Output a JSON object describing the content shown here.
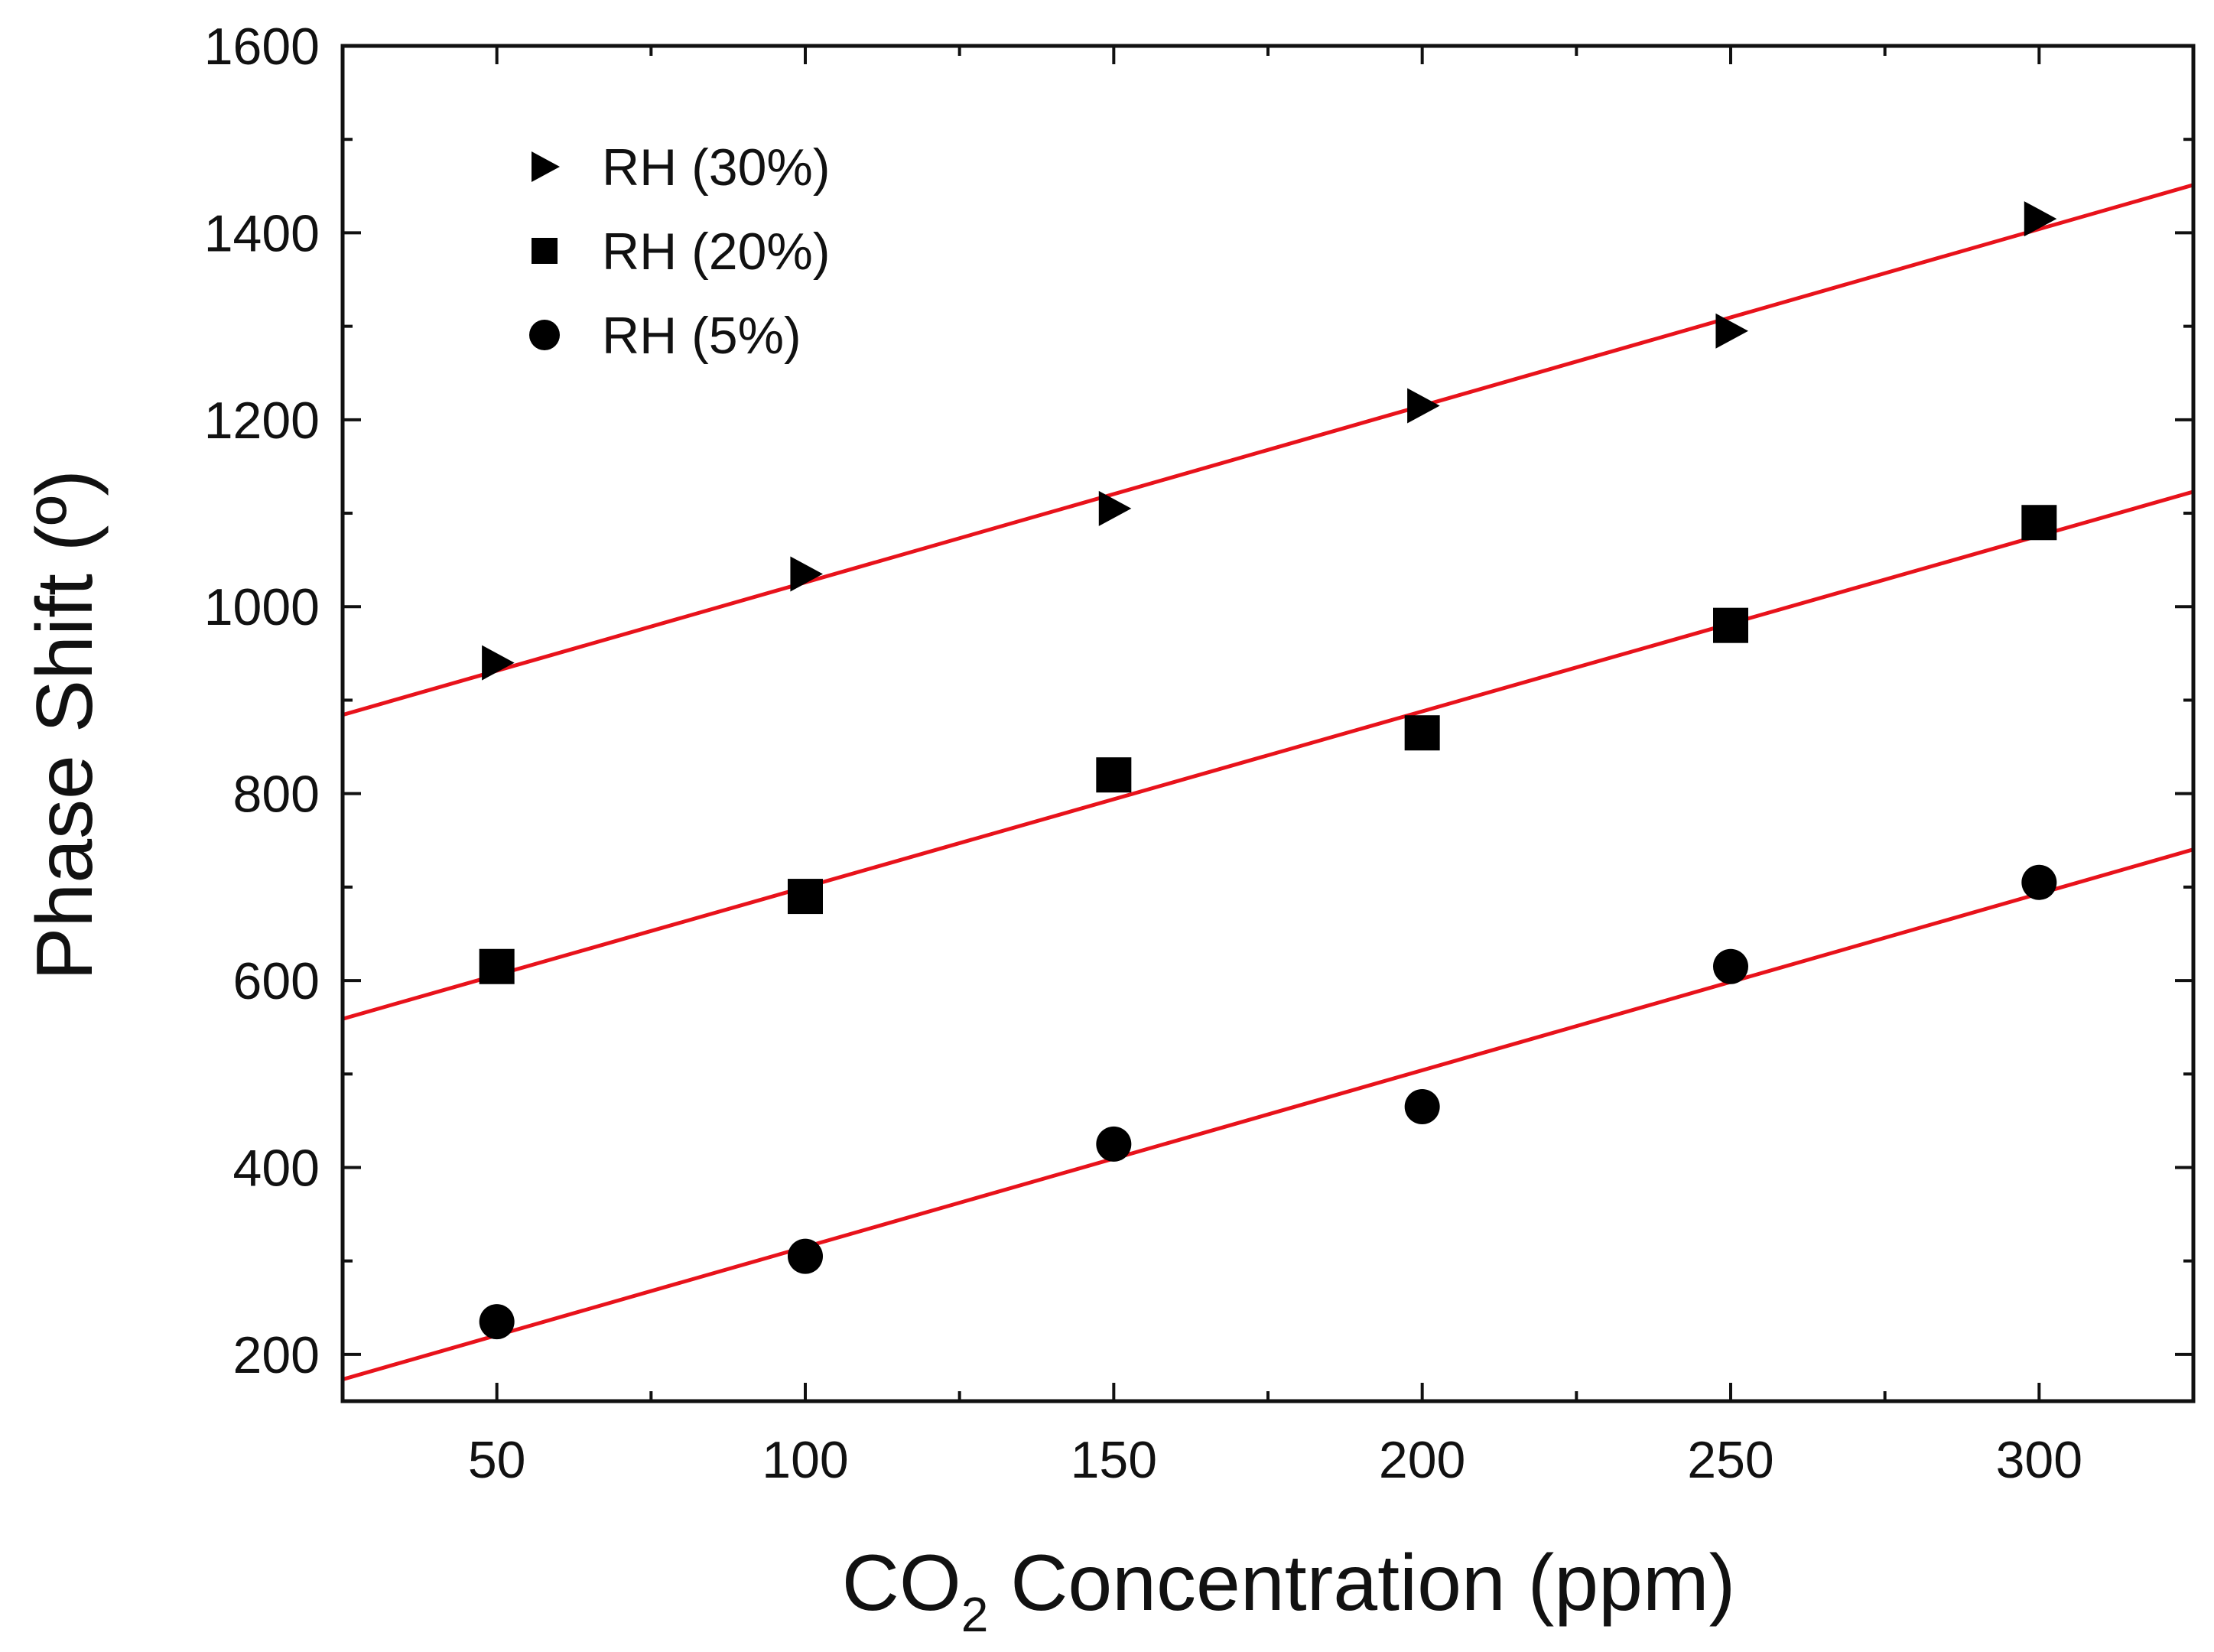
{
  "chart_data": {
    "type": "scatter",
    "title": "",
    "xlabel_main": "CO",
    "xlabel_sub": "2",
    "xlabel_rest": " Concentration (ppm)",
    "ylabel": "Phase Shift (º)",
    "xlim": [
      25,
      325
    ],
    "ylim": [
      150,
      1600
    ],
    "x_ticks": [
      50,
      100,
      150,
      200,
      250,
      300
    ],
    "x_minor_ticks": [
      75,
      125,
      175,
      225,
      275
    ],
    "y_ticks": [
      200,
      400,
      600,
      800,
      1000,
      1200,
      1400,
      1600
    ],
    "y_minor_ticks": [
      300,
      500,
      700,
      900,
      1100,
      1300,
      1500
    ],
    "legend_position": "top-left",
    "fit_line_color": "#e8121b",
    "marker_color": "#000000",
    "series": [
      {
        "name": "RH (30%)",
        "marker": "triangle-right",
        "x": [
          50,
          100,
          150,
          200,
          250,
          300
        ],
        "y": [
          940,
          1035,
          1105,
          1215,
          1295,
          1415
        ],
        "fit": {
          "slope": 1.89,
          "intercept": 837
        }
      },
      {
        "name": "RH (20%)",
        "marker": "square",
        "x": [
          50,
          100,
          150,
          200,
          250,
          300
        ],
        "y": [
          615,
          690,
          820,
          865,
          980,
          1090
        ],
        "fit": {
          "slope": 1.88,
          "intercept": 512
        }
      },
      {
        "name": "RH (5%)",
        "marker": "circle",
        "x": [
          50,
          100,
          150,
          200,
          250,
          300
        ],
        "y": [
          235,
          305,
          425,
          465,
          615,
          705
        ],
        "fit": {
          "slope": 1.89,
          "intercept": 126
        }
      }
    ]
  }
}
